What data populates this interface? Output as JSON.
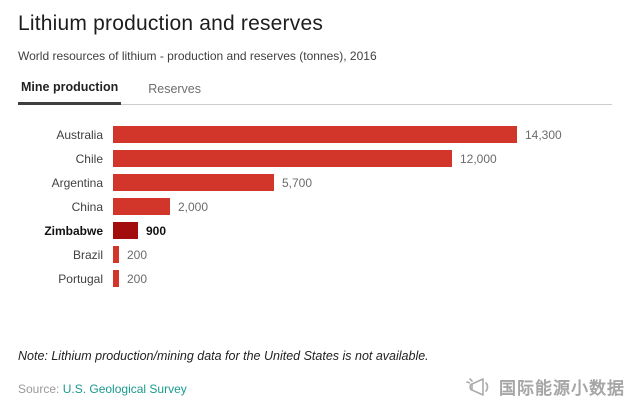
{
  "header": {
    "title": "Lithium production and reserves",
    "subtitle": "World resources of lithium - production and reserves (tonnes), 2016"
  },
  "tabs": [
    {
      "label": "Mine production",
      "active": true
    },
    {
      "label": "Reserves",
      "active": false
    }
  ],
  "chart_data": {
    "type": "bar",
    "orientation": "horizontal",
    "categories": [
      "Australia",
      "Chile",
      "Argentina",
      "China",
      "Zimbabwe",
      "Brazil",
      "Portugal"
    ],
    "values": [
      14300,
      12000,
      5700,
      2000,
      900,
      200,
      200
    ],
    "value_labels": [
      "14,300",
      "12,000",
      "5,700",
      "2,000",
      "900",
      "200",
      "200"
    ],
    "highlight_category": "Zimbabwe",
    "xlim": [
      0,
      14300
    ],
    "grid": false,
    "legend": "none",
    "title": "Lithium production and reserves",
    "xlabel": "",
    "ylabel": "",
    "bar_color": "#d2362a",
    "highlight_color": "#a30d0d"
  },
  "footer": {
    "note": "Note: Lithium production/mining data for the United States is not available.",
    "source_prefix": "Source:",
    "source_link": "U.S. Geological Survey"
  },
  "watermark": {
    "icon": "megaphone-icon",
    "text": "国际能源小数据"
  },
  "colors": {
    "bar": "#d2362a",
    "bar_highlight": "#a30d0d",
    "tab_underline": "#3f3f42",
    "divider": "#cccccc",
    "source_link": "#1a9a8d",
    "watermark": "#a6a6a6"
  }
}
